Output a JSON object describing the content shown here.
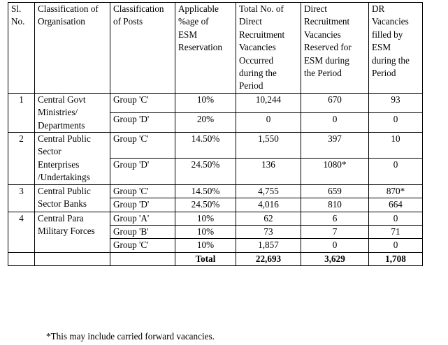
{
  "header": {
    "sl": [
      "Sl.",
      "No."
    ],
    "org": [
      "Classification of",
      "Organisation"
    ],
    "posts": [
      "Classification",
      "of Posts"
    ],
    "pct": [
      "Applicable",
      "%age of",
      "ESM",
      "Reservation"
    ],
    "total": [
      "Total No. of",
      "Direct",
      "Recruitment",
      "Vacancies",
      "Occurred",
      "during the",
      "Period"
    ],
    "direct": [
      "Direct",
      "Recruitment",
      "Vacancies",
      "Reserved for",
      "ESM during",
      "the Period"
    ],
    "filled": [
      "DR",
      "Vacancies",
      "filled by",
      "ESM",
      "during the",
      "Period"
    ]
  },
  "groups": [
    {
      "sl": "1",
      "org": [
        "Central Govt",
        "Ministries/",
        "Departments"
      ],
      "rows": [
        {
          "post": "Group 'C'",
          "pct": "10%",
          "total": "10,244",
          "reserved": "670",
          "filled": "93"
        },
        {
          "post": "Group 'D'",
          "pct": "20%",
          "total": "0",
          "reserved": "0",
          "filled": "0"
        }
      ]
    },
    {
      "sl": "2",
      "org": [
        "Central Public",
        "Sector",
        "Enterprises",
        "/Undertakings"
      ],
      "rows": [
        {
          "post": "Group 'C'",
          "pct": "14.50%",
          "total": "1,550",
          "reserved": "397",
          "filled": "10"
        },
        {
          "post": "Group 'D'",
          "pct": "24.50%",
          "total": "136",
          "reserved": "1080*",
          "filled": "0"
        }
      ]
    },
    {
      "sl": "3",
      "org": [
        "Central Public",
        "Sector Banks"
      ],
      "rows": [
        {
          "post": "Group 'C'",
          "pct": "14.50%",
          "total": "4,755",
          "reserved": "659",
          "filled": "870*"
        },
        {
          "post": "Group 'D'",
          "pct": "24.50%",
          "total": "4,016",
          "reserved": "810",
          "filled": "664"
        }
      ]
    },
    {
      "sl": "4",
      "org": [
        "Central Para",
        "Military Forces"
      ],
      "rows": [
        {
          "post": "Group 'A'",
          "pct": "10%",
          "total": "62",
          "reserved": "6",
          "filled": "0"
        },
        {
          "post": "Group 'B'",
          "pct": "10%",
          "total": "73",
          "reserved": "7",
          "filled": "71"
        },
        {
          "post": "Group 'C'",
          "pct": "10%",
          "total": "1,857",
          "reserved": "0",
          "filled": "0"
        }
      ]
    }
  ],
  "totals": {
    "label": "Total",
    "total": "22,693",
    "reserved": "3,629",
    "filled": "1,708"
  },
  "footnote": "*This may include carried forward vacancies."
}
